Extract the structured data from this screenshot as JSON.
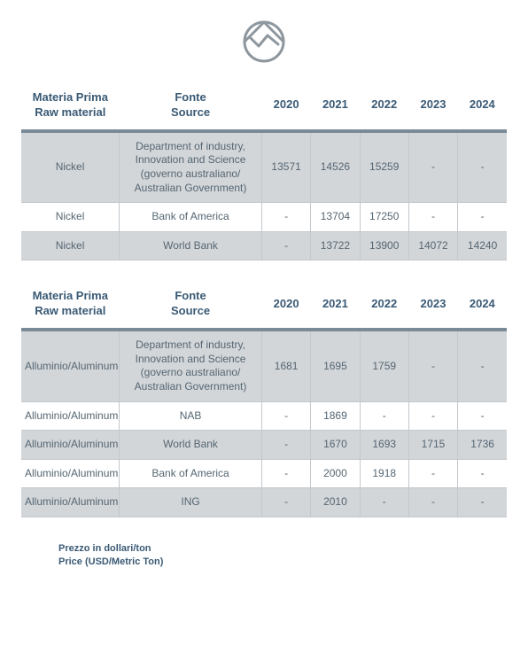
{
  "colors": {
    "header_text": "#3a5a75",
    "header_border": "#7a8a96",
    "cell_text": "#556672",
    "cell_border": "#c3c8cc",
    "row_odd_bg": "#d3d6d9",
    "row_even_bg": "#ffffff",
    "logo_stroke": "#8e979e"
  },
  "header": {
    "material_it": "Materia Prima",
    "material_en": "Raw material",
    "source_it": "Fonte",
    "source_en": "Source",
    "years": [
      "2020",
      "2021",
      "2022",
      "2023",
      "2024"
    ]
  },
  "table1": {
    "rows": [
      {
        "material": "Nickel",
        "source": "Department of industry, Innovation and Science (governo australiano/ Australian Government)",
        "v": [
          "13571",
          "14526",
          "15259",
          "-",
          "-"
        ]
      },
      {
        "material": "Nickel",
        "source": "Bank of America",
        "v": [
          "-",
          "13704",
          "17250",
          "-",
          "-"
        ]
      },
      {
        "material": "Nickel",
        "source": "World Bank",
        "v": [
          "-",
          "13722",
          "13900",
          "14072",
          "14240"
        ]
      }
    ]
  },
  "table2": {
    "rows": [
      {
        "material": "Alluminio/Aluminum",
        "source": "Department of industry, Innovation and Science (governo australiano/ Australian Government)",
        "v": [
          "1681",
          "1695",
          "1759",
          "-",
          "-"
        ]
      },
      {
        "material": "Alluminio/Aluminum",
        "source": "NAB",
        "v": [
          "-",
          "1869",
          "-",
          "-",
          "-"
        ]
      },
      {
        "material": "Alluminio/Aluminum",
        "source": "World Bank",
        "v": [
          "-",
          "1670",
          "1693",
          "1715",
          "1736"
        ]
      },
      {
        "material": "Alluminio/Aluminum",
        "source": "Bank of America",
        "v": [
          "-",
          "2000",
          "1918",
          "-",
          "-"
        ]
      },
      {
        "material": "Alluminio/Aluminum",
        "source": "ING",
        "v": [
          "-",
          "2010",
          "-",
          "-",
          "-"
        ]
      }
    ]
  },
  "footnote": {
    "line1": "Prezzo in dollari/ton",
    "line2": "Price (USD/Metric Ton)"
  }
}
